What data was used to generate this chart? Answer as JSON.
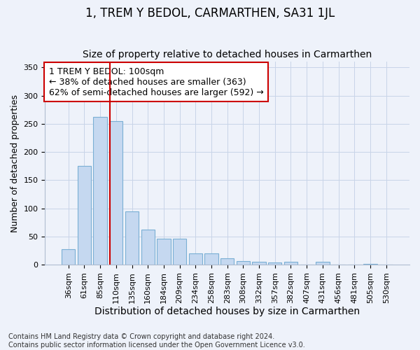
{
  "title": "1, TREM Y BEDOL, CARMARTHEN, SA31 1JL",
  "subtitle": "Size of property relative to detached houses in Carmarthen",
  "xlabel": "Distribution of detached houses by size in Carmarthen",
  "ylabel": "Number of detached properties",
  "categories": [
    "36sqm",
    "61sqm",
    "85sqm",
    "110sqm",
    "135sqm",
    "160sqm",
    "184sqm",
    "209sqm",
    "234sqm",
    "258sqm",
    "283sqm",
    "308sqm",
    "332sqm",
    "357sqm",
    "382sqm",
    "407sqm",
    "431sqm",
    "456sqm",
    "481sqm",
    "505sqm",
    "530sqm"
  ],
  "values": [
    28,
    175,
    263,
    255,
    95,
    62,
    46,
    46,
    20,
    20,
    11,
    7,
    5,
    4,
    5,
    0,
    5,
    0,
    0,
    2,
    0
  ],
  "bar_color": "#c5d8f0",
  "bar_edge_color": "#7aafd4",
  "property_label": "1 TREM Y BEDOL: 100sqm",
  "pct_smaller": 38,
  "n_smaller": 363,
  "pct_larger": 62,
  "n_larger": 592,
  "annotation_box_color": "#ffffff",
  "annotation_box_edge": "#cc0000",
  "bg_color": "#eef2fa",
  "grid_color": "#c8d4e8",
  "footer_line1": "Contains HM Land Registry data © Crown copyright and database right 2024.",
  "footer_line2": "Contains public sector information licensed under the Open Government Licence v3.0.",
  "ylim": [
    0,
    360
  ],
  "title_fontsize": 12,
  "subtitle_fontsize": 10,
  "xlabel_fontsize": 10,
  "ylabel_fontsize": 9,
  "tick_fontsize": 8,
  "annotation_fontsize": 9,
  "footer_fontsize": 7
}
